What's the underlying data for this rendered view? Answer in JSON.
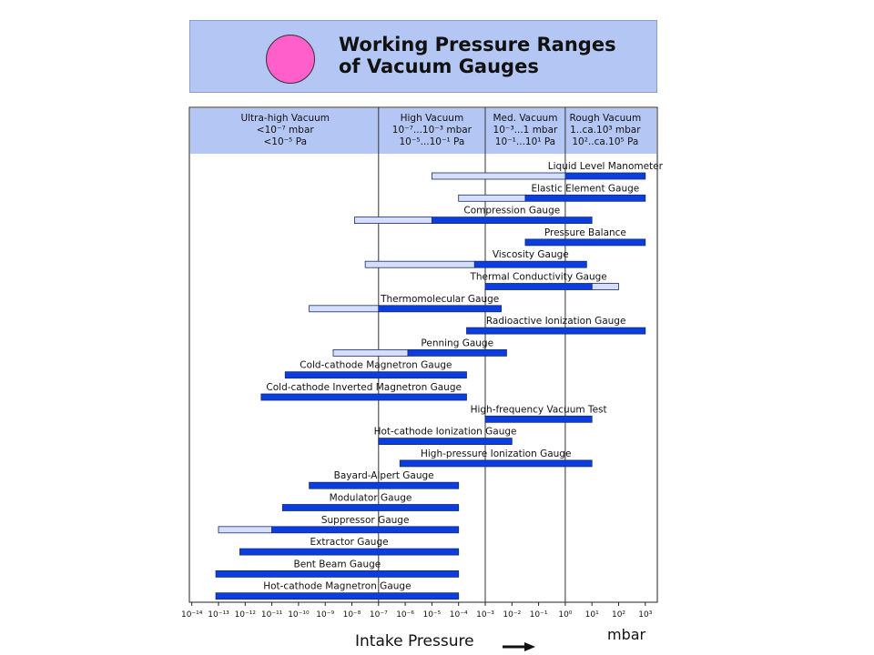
{
  "header": {
    "title_line1": "Working Pressure Ranges",
    "title_line2": "of Vacuum Gauges"
  },
  "colors": {
    "header_bg": "#b4c7f4",
    "dot": "#ff5fcb",
    "main_bar": "#0a3ee0",
    "extended_bar": "#d4e0fb"
  },
  "chart_data": {
    "type": "bar",
    "orientation": "horizontal",
    "x_scale": "log",
    "x_unit": "mbar",
    "xlabel": "Intake Pressure",
    "xlim_exponent": [
      -14,
      3
    ],
    "x_tick_labels": [
      "10⁻¹⁴",
      "10⁻¹³",
      "10⁻¹²",
      "10⁻¹¹",
      "10⁻¹⁰",
      "10⁻⁹",
      "10⁻⁸",
      "10⁻⁷",
      "10⁻⁶",
      "10⁻⁵",
      "10⁻⁴",
      "10⁻³",
      "10⁻²",
      "10⁻¹",
      "10⁰",
      "10¹",
      "10²",
      "10³"
    ],
    "zones": [
      {
        "lines": [
          "Ultra-high Vacuum",
          "<10⁻⁷ mbar",
          "<10⁻⁵ Pa"
        ],
        "from_exp": -14,
        "to_exp": -7
      },
      {
        "lines": [
          "High Vacuum",
          "10⁻⁷...10⁻³ mbar",
          "10⁻⁵...10⁻¹ Pa"
        ],
        "from_exp": -7,
        "to_exp": -3
      },
      {
        "lines": [
          "Med. Vacuum",
          "10⁻³...1 mbar",
          "10⁻¹...10¹ Pa"
        ],
        "from_exp": -3,
        "to_exp": 0
      },
      {
        "lines": [
          "Rough Vacuum",
          "1..ca.10³ mbar",
          "10²..ca.10⁵ Pa"
        ],
        "from_exp": 0,
        "to_exp": 3
      }
    ],
    "gauges": [
      {
        "name": "Liquid Level Manometer",
        "main": [
          0,
          3
        ],
        "extended": [
          -5,
          0
        ]
      },
      {
        "name": "Elastic Element Gauge",
        "main": [
          -1.5,
          3
        ],
        "extended": [
          -4,
          -1.5
        ]
      },
      {
        "name": "Compression Gauge",
        "main": [
          -5,
          1
        ],
        "extended": [
          -7.9,
          -5
        ]
      },
      {
        "name": "Pressure Balance",
        "main": [
          -1.5,
          3
        ],
        "extended": null
      },
      {
        "name": "Viscosity Gauge",
        "main": [
          -3.4,
          0.8
        ],
        "extended": [
          -7.5,
          -3.4
        ]
      },
      {
        "name": "Thermal Conductivity Gauge",
        "main": [
          -3,
          1
        ],
        "extended": [
          1,
          2
        ]
      },
      {
        "name": "Thermomolecular Gauge",
        "main": [
          -7,
          -2.4
        ],
        "extended": [
          -9.6,
          -7
        ]
      },
      {
        "name": "Radioactive Ionization Gauge",
        "main": [
          -3.7,
          3
        ],
        "extended": null
      },
      {
        "name": "Penning Gauge",
        "main": [
          -5.9,
          -2.2
        ],
        "extended": [
          -8.7,
          -5.9
        ]
      },
      {
        "name": "Cold-cathode Magnetron Gauge",
        "main": [
          -10.5,
          -3.7
        ],
        "extended": null
      },
      {
        "name": "Cold-cathode Inverted Magnetron Gauge",
        "main": [
          -11.4,
          -3.7
        ],
        "extended": null
      },
      {
        "name": "High-frequency Vacuum Test",
        "main": [
          -3,
          1
        ],
        "extended": null
      },
      {
        "name": "Hot-cathode Ionization Gauge",
        "main": [
          -7,
          -2
        ],
        "extended": null
      },
      {
        "name": "High-pressure Ionization Gauge",
        "main": [
          -6.2,
          1
        ],
        "extended": null
      },
      {
        "name": "Bayard-Alpert Gauge",
        "main": [
          -9.6,
          -4
        ],
        "extended": null
      },
      {
        "name": "Modulator Gauge",
        "main": [
          -10.6,
          -4
        ],
        "extended": null
      },
      {
        "name": "Suppressor Gauge",
        "main": [
          -11,
          -4
        ],
        "extended": [
          -13,
          -11
        ]
      },
      {
        "name": "Extractor Gauge",
        "main": [
          -12.2,
          -4
        ],
        "extended": null
      },
      {
        "name": "Bent Beam Gauge",
        "main": [
          -13.1,
          -4
        ],
        "extended": null
      },
      {
        "name": "Hot-cathode Magnetron Gauge",
        "main": [
          -13.1,
          -4
        ],
        "extended": null
      }
    ]
  }
}
